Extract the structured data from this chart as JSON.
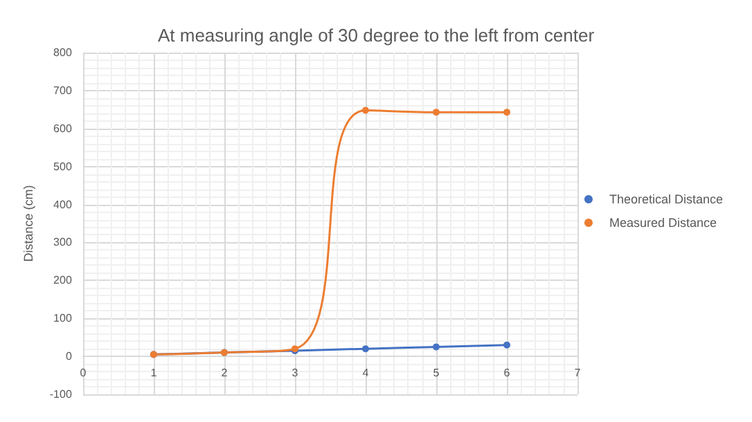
{
  "chart_data": {
    "type": "line",
    "title": "At measuring angle of 30 degree to the left from center",
    "ylabel": "Distance (cm)",
    "x": [
      1,
      2,
      3,
      4,
      5,
      6
    ],
    "series": [
      {
        "name": "Theoretical Distance",
        "color": "#4472c4",
        "values": [
          5,
          10,
          15,
          20,
          25,
          30
        ]
      },
      {
        "name": "Measured Distance",
        "color": "#ed7d31",
        "values": [
          5,
          10,
          20,
          648,
          643,
          643
        ]
      }
    ],
    "xlim": [
      0,
      7
    ],
    "xticks": [
      0,
      1,
      2,
      3,
      4,
      5,
      6,
      7
    ],
    "ylim": [
      -100,
      800
    ],
    "yticks": [
      -100,
      0,
      100,
      200,
      300,
      400,
      500,
      600,
      700,
      800
    ],
    "grid": true,
    "legend": "right",
    "marker": "circle",
    "line_style": "solid"
  }
}
